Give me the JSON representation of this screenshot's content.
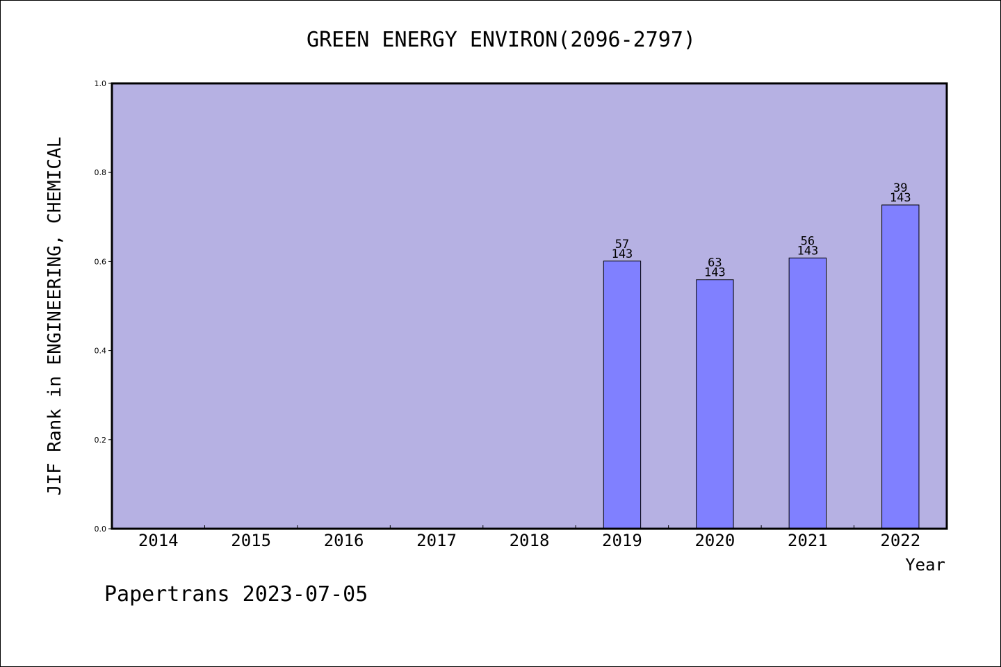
{
  "chart_data": {
    "type": "bar",
    "title": "GREEN ENERGY ENVIRON(2096-2797)",
    "ylabel": "JIF Rank in ENGINEERING, CHEMICAL",
    "xlabel": "Year",
    "ylim": [
      0,
      1.0
    ],
    "yticks": [
      "0.0",
      "0.2",
      "0.4",
      "0.6",
      "0.8",
      "1.0"
    ],
    "categories": [
      "2014",
      "2015",
      "2016",
      "2017",
      "2018",
      "2019",
      "2020",
      "2021",
      "2022"
    ],
    "values": [
      null,
      null,
      null,
      null,
      null,
      0.601,
      0.559,
      0.608,
      0.727
    ],
    "bar_labels": [
      null,
      null,
      null,
      null,
      null,
      {
        "rank": "57",
        "total": "143"
      },
      {
        "rank": "63",
        "total": "143"
      },
      {
        "rank": "56",
        "total": "143"
      },
      {
        "rank": "39",
        "total": "143"
      }
    ],
    "grid": false,
    "colors": {
      "plot_background": "#b6b1e3",
      "bar_fill": "#8080ff",
      "bar_stroke": "#000000"
    }
  },
  "footer": {
    "text": "Papertrans 2023-07-05"
  }
}
